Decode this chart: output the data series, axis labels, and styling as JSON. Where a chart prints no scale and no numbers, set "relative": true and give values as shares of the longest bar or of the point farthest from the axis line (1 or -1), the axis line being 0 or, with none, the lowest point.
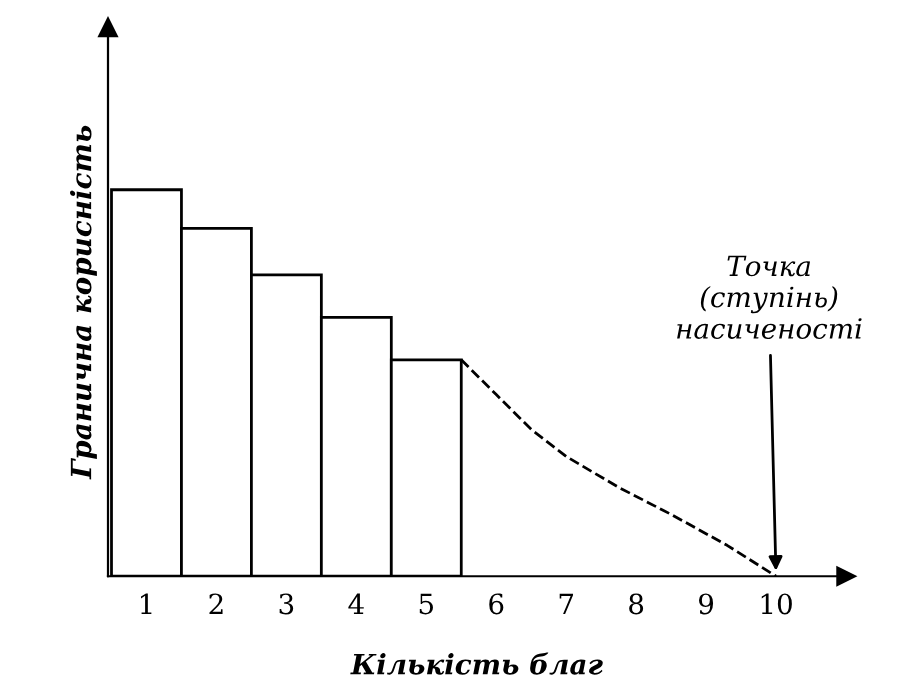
{
  "chart_data": {
    "type": "bar",
    "relative": true,
    "xlabel": "Кількість благ",
    "ylabel": "Гранична корисність",
    "xlim": [
      0.45,
      11
    ],
    "xticks": [
      1,
      2,
      3,
      4,
      5,
      6,
      7,
      8,
      9,
      10
    ],
    "tick_labels": "x",
    "grid": false,
    "legend": false,
    "series": [
      {
        "color": "#ffffff",
        "x": [
          1,
          2,
          3,
          4,
          5
        ],
        "values": [
          1,
          0.9,
          0.78,
          0.67,
          0.56
        ]
      },
      {
        "type": "line",
        "color": "#000000",
        "line_style": "dashed",
        "marker": "none",
        "x": [
          5.5,
          6.0,
          6.5,
          7.0,
          7.75,
          8.5,
          9.3,
          10
        ],
        "values": [
          0.56,
          0.47,
          0.38,
          0.31,
          0.23,
          0.16,
          0.08,
          0
        ]
      }
    ],
    "annotations": [
      {
        "text": "Точка\n(ступінь)\nнасиченості",
        "x": 10,
        "y": 0
      }
    ]
  }
}
